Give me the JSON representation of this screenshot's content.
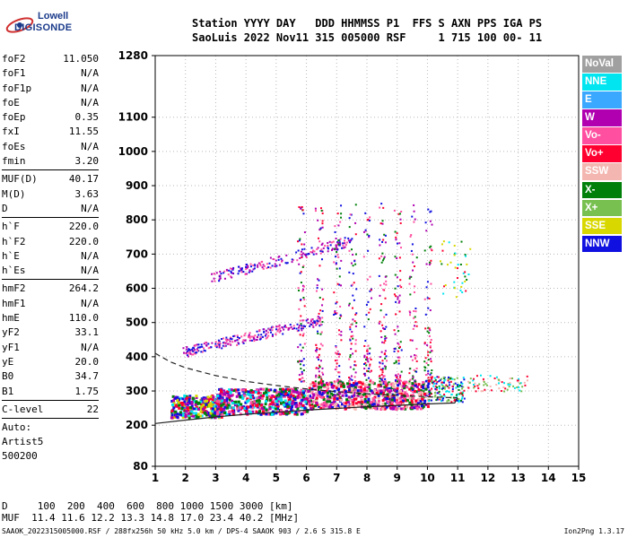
{
  "logo": {
    "line1": "Lowell",
    "line2": "DIGISONDE"
  },
  "header": {
    "line1": "Station YYYY DAY   DDD HHMMSS P1  FFS S AXN PPS IGA PS",
    "line2": "SaoLuis 2022 Nov11 315 005000 RSF     1 715 100 00- 11"
  },
  "params": [
    [
      {
        "name": "foF2",
        "value": "11.050"
      },
      {
        "name": "foF1",
        "value": "N/A"
      },
      {
        "name": "foF1p",
        "value": "N/A"
      },
      {
        "name": "foE",
        "value": "N/A"
      },
      {
        "name": "foEp",
        "value": "0.35"
      },
      {
        "name": "fxI",
        "value": "11.55"
      },
      {
        "name": "foEs",
        "value": "N/A"
      },
      {
        "name": "fmin",
        "value": "3.20"
      }
    ],
    [
      {
        "name": "MUF(D)",
        "value": "40.17"
      },
      {
        "name": "M(D)",
        "value": "3.63"
      },
      {
        "name": "D",
        "value": "N/A"
      }
    ],
    [
      {
        "name": "h`F",
        "value": "220.0"
      },
      {
        "name": "h`F2",
        "value": "220.0"
      },
      {
        "name": "h`E",
        "value": "N/A"
      },
      {
        "name": "h`Es",
        "value": "N/A"
      }
    ],
    [
      {
        "name": "hmF2",
        "value": "264.2"
      },
      {
        "name": "hmF1",
        "value": "N/A"
      },
      {
        "name": "hmE",
        "value": "110.0"
      },
      {
        "name": "yF2",
        "value": "33.1"
      },
      {
        "name": "yF1",
        "value": "N/A"
      },
      {
        "name": "yE",
        "value": "20.0"
      },
      {
        "name": "B0",
        "value": "34.7"
      },
      {
        "name": "B1",
        "value": "1.75"
      }
    ],
    [
      {
        "name": "C-level",
        "value": "22"
      }
    ]
  ],
  "autoscale": [
    "Auto:",
    "Artist5",
    "500200"
  ],
  "legend": [
    {
      "label": "NoVal",
      "color": "#a0a0a0"
    },
    {
      "label": "NNE",
      "color": "#00e5f0"
    },
    {
      "label": "E",
      "color": "#3aa8ff"
    },
    {
      "label": "W",
      "color": "#b000b0"
    },
    {
      "label": "Vo-",
      "color": "#ff4fa0"
    },
    {
      "label": "Vo+",
      "color": "#ff0030"
    },
    {
      "label": "SSW",
      "color": "#f4b6b0"
    },
    {
      "label": "X-",
      "color": "#00800a"
    },
    {
      "label": "X+",
      "color": "#78c050"
    },
    {
      "label": "SSE",
      "color": "#d8d800"
    },
    {
      "label": "NNW",
      "color": "#1010e0"
    }
  ],
  "bottom": {
    "line1": "D     100  200  400  600  800 1000 1500 3000 [km]",
    "line2": "MUF  11.4 11.6 12.2 13.3 14.8 17.0 23.4 40.2 [MHz]"
  },
  "footer": "SAAOK_2022315005000.RSF / 288fx256h 50 kHz 5.0 km / DPS-4 SAAOK 903 / 2.6 S 315.8 E",
  "version": "Ion2Png 1.3.17",
  "chart_data": {
    "type": "scatter",
    "title": "",
    "xlabel": "",
    "ylabel": "",
    "xlim": [
      1,
      15
    ],
    "ylim": [
      80,
      1280
    ],
    "x_ticks": [
      1,
      2,
      3,
      4,
      5,
      6,
      7,
      8,
      9,
      10,
      11,
      12,
      13,
      14,
      15
    ],
    "y_ticks": [
      80,
      200,
      300,
      400,
      500,
      600,
      700,
      800,
      900,
      1000,
      1100,
      1280
    ],
    "grid": true,
    "legend_position": "right",
    "series": [
      {
        "name": "",
        "style": "dashed",
        "points": [
          [
            1.0,
            410
          ],
          [
            1.5,
            385
          ],
          [
            2.0,
            368
          ],
          [
            3.0,
            345
          ],
          [
            4.0,
            328
          ],
          [
            5.0,
            316
          ],
          [
            6.0,
            306
          ],
          [
            7.0,
            298
          ],
          [
            8.0,
            292
          ],
          [
            9.0,
            287
          ],
          [
            10.0,
            283
          ],
          [
            11.0,
            280
          ]
        ]
      },
      {
        "name": "",
        "style": "solid",
        "points": [
          [
            1.0,
            205
          ],
          [
            2.0,
            215
          ],
          [
            3.0,
            224
          ],
          [
            4.0,
            232
          ],
          [
            5.0,
            238
          ],
          [
            6.0,
            244
          ],
          [
            7.0,
            249
          ],
          [
            8.0,
            254
          ],
          [
            9.0,
            258
          ],
          [
            10.0,
            262
          ],
          [
            10.9,
            265
          ],
          [
            11.0,
            280
          ]
        ]
      }
    ],
    "echo_clusters": [
      {
        "x": [
          1.5,
          3.2
        ],
        "y": [
          225,
          290
        ],
        "colors": [
          "W",
          "NNW",
          "Vo+",
          "X-",
          "NNE",
          "SSE"
        ],
        "n": 320
      },
      {
        "x": [
          3.0,
          6.0
        ],
        "y": [
          235,
          310
        ],
        "colors": [
          "Vo+",
          "Vo-",
          "W",
          "X-",
          "NNW",
          "NNE"
        ],
        "n": 500
      },
      {
        "x": [
          6.0,
          10.0
        ],
        "y": [
          250,
          330
        ],
        "colors": [
          "Vo+",
          "Vo-",
          "W",
          "X-",
          "NNW",
          "SSW"
        ],
        "n": 650
      },
      {
        "x": [
          10.0,
          11.2
        ],
        "y": [
          270,
          345
        ],
        "colors": [
          "X-",
          "X+",
          "Vo+",
          "NNE",
          "NNW"
        ],
        "n": 160
      },
      {
        "x": [
          11.3,
          13.3
        ],
        "y": [
          300,
          350
        ],
        "colors": [
          "NNE",
          "SSW",
          "Vo+",
          "X+"
        ],
        "n": 70
      },
      {
        "x": [
          1.9,
          6.5
        ],
        "y": [
          415,
          540
        ],
        "colors": [
          "NNW",
          "W",
          "Vo-"
        ],
        "n": 260
      },
      {
        "x": [
          2.8,
          7.5
        ],
        "y": [
          630,
          780
        ],
        "colors": [
          "W",
          "Vo-",
          "NNW"
        ],
        "n": 180
      },
      {
        "x": [
          5.0,
          10.5
        ],
        "y": [
          330,
          850
        ],
        "colors": [
          "Vo+",
          "Vo-",
          "W",
          "X-",
          "NNW"
        ],
        "n": 650
      },
      {
        "x": [
          10.4,
          11.4
        ],
        "y": [
          570,
          740
        ],
        "colors": [
          "SSE",
          "X-",
          "NNE",
          "Vo+"
        ],
        "n": 40
      }
    ]
  }
}
